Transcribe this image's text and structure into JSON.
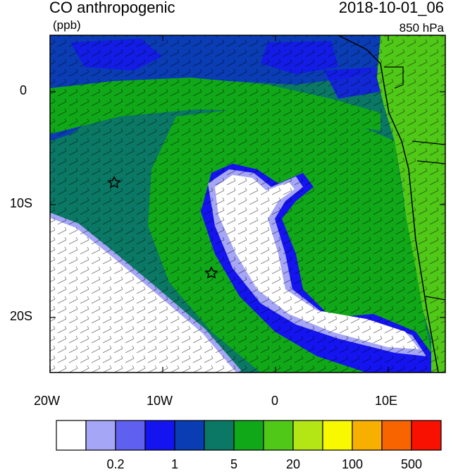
{
  "header": {
    "title": "CO anthropogenic",
    "units": "(ppb)",
    "datetime": "2018-10-01_06",
    "level": "850 hPa"
  },
  "axes": {
    "lon_ticks": [
      "20W",
      "10W",
      "0",
      "10E"
    ],
    "lat_ticks": [
      "0",
      "10S",
      "20S"
    ],
    "lon_range": [
      -20,
      15
    ],
    "lat_range": [
      -25,
      5
    ]
  },
  "markers": [
    {
      "name": "star",
      "lon": -14.5,
      "lat": -8
    },
    {
      "name": "star",
      "lon": -5.7,
      "lat": -16
    }
  ],
  "colorbar": {
    "colors": [
      "#ffffff",
      "#a6a6f7",
      "#6060f0",
      "#1414f0",
      "#0a3cb4",
      "#0a7864",
      "#10a818",
      "#50c818",
      "#b4e616",
      "#f8f800",
      "#f8b000",
      "#f86400",
      "#f81000"
    ],
    "labels": [
      "0.2",
      "1",
      "5",
      "20",
      "100",
      "500"
    ]
  },
  "palette": {
    "ocean_bg": "#0a7864",
    "plume_outer": "#10a818",
    "plume_blue": "#1414f0",
    "plume_light": "#a6a6f7",
    "plume_core": "#ffffff",
    "dark_blue": "#0a3cb4",
    "land_green": "#50c818"
  }
}
